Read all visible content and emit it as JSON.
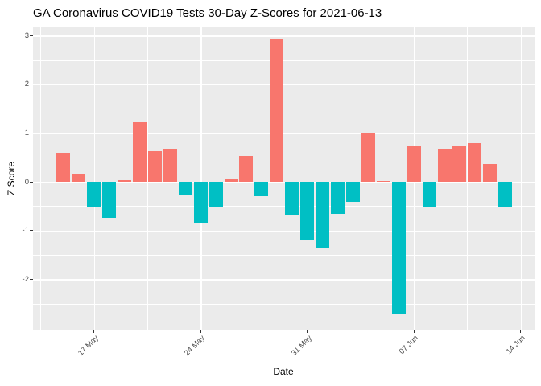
{
  "page": {
    "title": "GA Coronavirus COVID19 Tests 30-Day Z-Scores for 2021-06-13"
  },
  "chart_data": {
    "type": "bar",
    "title": "GA Coronavirus COVID19 Tests 30-Day Z-Scores for 2021-06-13",
    "xlabel": "Date",
    "ylabel": "Z Score",
    "x": [
      "2021-05-15",
      "2021-05-16",
      "2021-05-17",
      "2021-05-18",
      "2021-05-19",
      "2021-05-20",
      "2021-05-21",
      "2021-05-22",
      "2021-05-23",
      "2021-05-24",
      "2021-05-25",
      "2021-05-26",
      "2021-05-27",
      "2021-05-28",
      "2021-05-29",
      "2021-05-30",
      "2021-05-31",
      "2021-06-01",
      "2021-06-02",
      "2021-06-03",
      "2021-06-04",
      "2021-06-05",
      "2021-06-06",
      "2021-06-07",
      "2021-06-08",
      "2021-06-09",
      "2021-06-10",
      "2021-06-11",
      "2021-06-12",
      "2021-06-13"
    ],
    "values": [
      0.59,
      0.17,
      -0.52,
      -0.75,
      0.03,
      1.22,
      0.62,
      0.68,
      -0.28,
      -0.84,
      -0.52,
      0.06,
      0.53,
      -0.29,
      2.92,
      -0.68,
      -1.2,
      -1.36,
      -0.66,
      -0.41,
      1.0,
      0.02,
      -2.72,
      0.74,
      -0.52,
      0.67,
      0.74,
      0.8,
      0.36,
      -0.53
    ],
    "x_ticks": [
      {
        "label": "17 May",
        "date": "2021-05-17"
      },
      {
        "label": "24 May",
        "date": "2021-05-24"
      },
      {
        "label": "31 May",
        "date": "2021-05-31"
      },
      {
        "label": "07 Jun",
        "date": "2021-06-07"
      },
      {
        "label": "14 Jun",
        "date": "2021-06-14"
      }
    ],
    "y_ticks": [
      3,
      2,
      1,
      0,
      -1,
      -2
    ],
    "ylim": [
      -3.0,
      3.2
    ],
    "grid": true,
    "legend": "none",
    "colors": {
      "positive_bar": "#F8766D",
      "negative_bar": "#00BFC4",
      "panel_bg": "#EBEBEB",
      "grid": "#FFFFFF",
      "axis_text": "#4D4D4D",
      "title_text": "#000000"
    }
  }
}
